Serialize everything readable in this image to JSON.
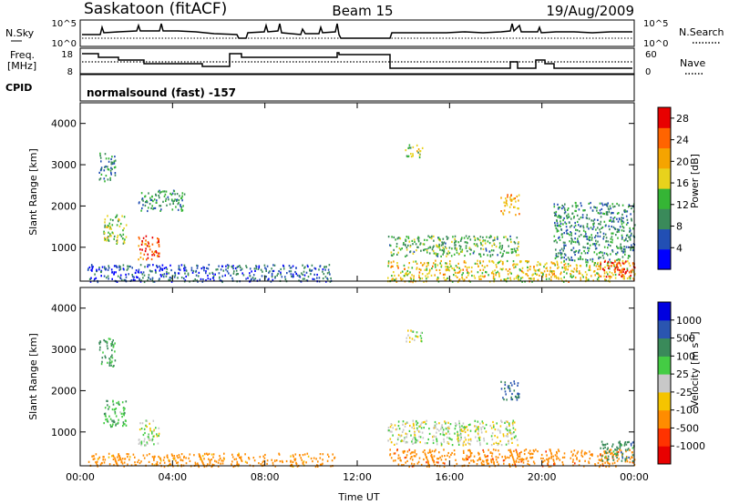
{
  "header": {
    "station": "Saskatoon (fitACF)",
    "beam": "Beam 15",
    "date": "19/Aug/2009"
  },
  "noise_panel": {
    "left_label": "N.Sky",
    "right_label": "N.Search",
    "left_ticks": [
      "10^5",
      "10^0"
    ],
    "right_ticks": [
      "10^5",
      "10^0"
    ]
  },
  "freq_panel": {
    "left_label_1": "Freq.",
    "left_label_2": "[MHz]",
    "right_label": "Nave",
    "left_ticks": [
      "18",
      "8"
    ],
    "right_ticks": [
      "60",
      "0"
    ]
  },
  "cpid_panel": {
    "label": "CPID",
    "text": "normalsound (fast) -157"
  },
  "colors": {
    "power_scale": [
      "#0000ff",
      "#224fb4",
      "#3a8a5a",
      "#35b535",
      "#e8d21c",
      "#f5a400",
      "#ff6400",
      "#e80000"
    ],
    "velocity_scale": [
      "#0000e0",
      "#2a55b0",
      "#3a8a5a",
      "#44cc44",
      "#c8c8c8",
      "#f5c400",
      "#ff8c00",
      "#ff3300",
      "#e80000"
    ],
    "ground_scatter": "#bebebe"
  },
  "chart_data": [
    {
      "type": "heatmap",
      "name": "power",
      "title": "",
      "ylabel": "Slant Range [km]",
      "xlim": [
        "00:00",
        "24:00"
      ],
      "ylim": [
        180,
        4500
      ],
      "yticks": [
        "1000",
        "2000",
        "3000",
        "4000"
      ],
      "colorbar": {
        "label": "Power [dB]",
        "ticks": [
          "4",
          "8",
          "12",
          "16",
          "20",
          "24",
          "28"
        ],
        "range": [
          0,
          30
        ]
      },
      "scatter_regions": [
        {
          "t0": 0.3,
          "t1": 11.0,
          "r0": 180,
          "r1": 600,
          "value": 6
        },
        {
          "t0": 0.8,
          "t1": 1.5,
          "r0": 2600,
          "r1": 3300,
          "value": 9
        },
        {
          "t0": 1.0,
          "t1": 2.0,
          "r0": 1100,
          "r1": 1800,
          "value": 14
        },
        {
          "t0": 2.5,
          "t1": 3.4,
          "r0": 700,
          "r1": 1300,
          "value": 26
        },
        {
          "t0": 2.5,
          "t1": 4.5,
          "r0": 1900,
          "r1": 2400,
          "value": 10
        },
        {
          "t0": 13.3,
          "t1": 24.0,
          "r0": 180,
          "r1": 700,
          "value": 18
        },
        {
          "t0": 13.3,
          "t1": 19.0,
          "r0": 800,
          "r1": 1300,
          "value": 12
        },
        {
          "t0": 14.0,
          "t1": 14.8,
          "r0": 3200,
          "r1": 3500,
          "value": 14
        },
        {
          "t0": 18.2,
          "t1": 19.0,
          "r0": 1800,
          "r1": 2300,
          "value": 20
        },
        {
          "t0": 20.5,
          "t1": 24.0,
          "r0": 700,
          "r1": 2100,
          "value": 10
        },
        {
          "t0": 22.5,
          "t1": 24.0,
          "r0": 300,
          "r1": 700,
          "value": 27
        }
      ]
    },
    {
      "type": "heatmap",
      "name": "velocity",
      "title": "",
      "ylabel": "Slant Range [km]",
      "xlabel": "Time UT",
      "xticks": [
        "00:00",
        "04:00",
        "08:00",
        "12:00",
        "16:00",
        "20:00",
        "00:00"
      ],
      "xlim": [
        "00:00",
        "24:00"
      ],
      "ylim": [
        180,
        4500
      ],
      "yticks": [
        "1000",
        "2000",
        "3000",
        "4000"
      ],
      "colorbar": {
        "label": "Velocity [m s-1]",
        "ticks": [
          "1000",
          "500",
          "100",
          "25",
          "-25",
          "-100",
          "-500",
          "-1000"
        ]
      },
      "scatter_regions": [
        {
          "t0": 0.3,
          "t1": 11.0,
          "r0": 180,
          "r1": 500,
          "value": -150
        },
        {
          "t0": 0.8,
          "t1": 1.5,
          "r0": 2600,
          "r1": 3300,
          "value": 120
        },
        {
          "t0": 1.0,
          "t1": 2.0,
          "r0": 1100,
          "r1": 1800,
          "value": 80
        },
        {
          "t0": 2.5,
          "t1": 3.4,
          "r0": 700,
          "r1": 1300,
          "value": 0
        },
        {
          "t0": 13.3,
          "t1": 24.0,
          "r0": 180,
          "r1": 600,
          "value": -250
        },
        {
          "t0": 13.3,
          "t1": 19.0,
          "r0": 700,
          "r1": 1300,
          "value": 0
        },
        {
          "t0": 14.0,
          "t1": 14.8,
          "r0": 3200,
          "r1": 3500,
          "value": 0
        },
        {
          "t0": 18.2,
          "t1": 19.0,
          "r0": 1800,
          "r1": 2300,
          "value": 200
        },
        {
          "t0": 22.5,
          "t1": 24.0,
          "r0": 300,
          "r1": 800,
          "value": 150
        }
      ]
    }
  ]
}
